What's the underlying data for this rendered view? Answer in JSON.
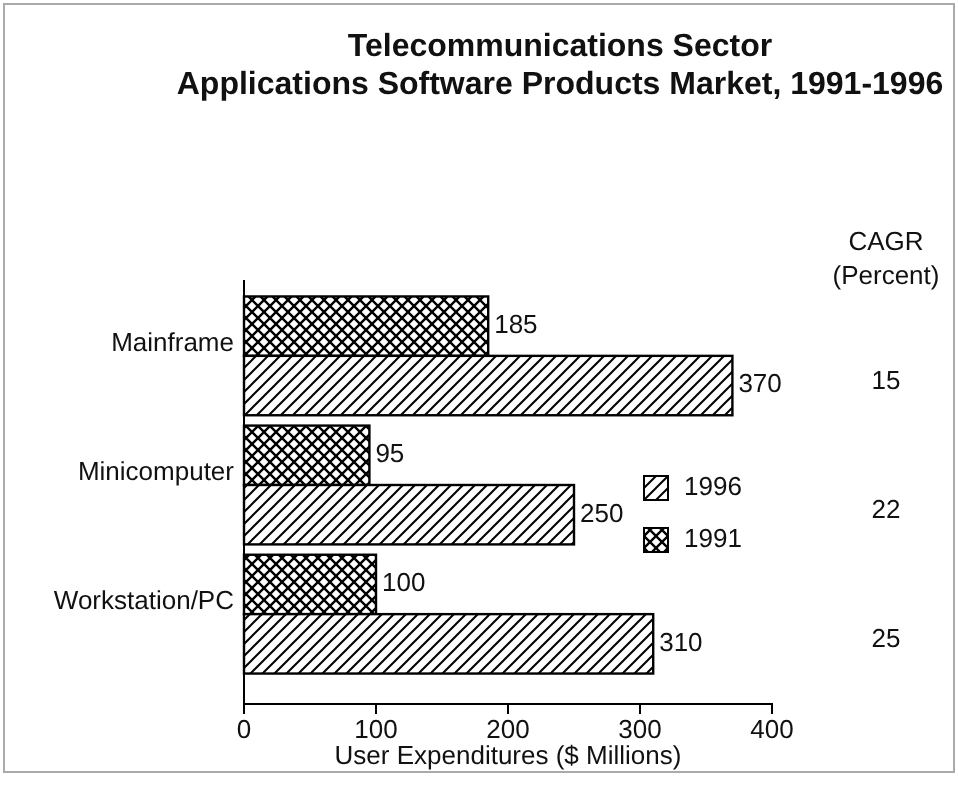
{
  "chart_data": {
    "type": "bar",
    "orientation": "horizontal",
    "title": "Telecommunications Sector\nApplications Software Products Market, 1991-1996",
    "xlabel": "User Expenditures ($ Millions)",
    "categories": [
      "Mainframe",
      "Minicomputer",
      "Workstation/PC"
    ],
    "series": [
      {
        "name": "1991",
        "color": "#000000",
        "values": [
          185,
          95,
          100
        ]
      },
      {
        "name": "1996",
        "color": "#000000",
        "values": [
          370,
          250,
          310
        ]
      }
    ],
    "xlim": [
      0,
      400
    ],
    "xticks": [
      0,
      100,
      200,
      300,
      400
    ],
    "data_labels": true,
    "legend": "right",
    "grid": false,
    "annotations": [
      "CAGR\n(Percent)",
      "15",
      "22",
      "25"
    ]
  }
}
